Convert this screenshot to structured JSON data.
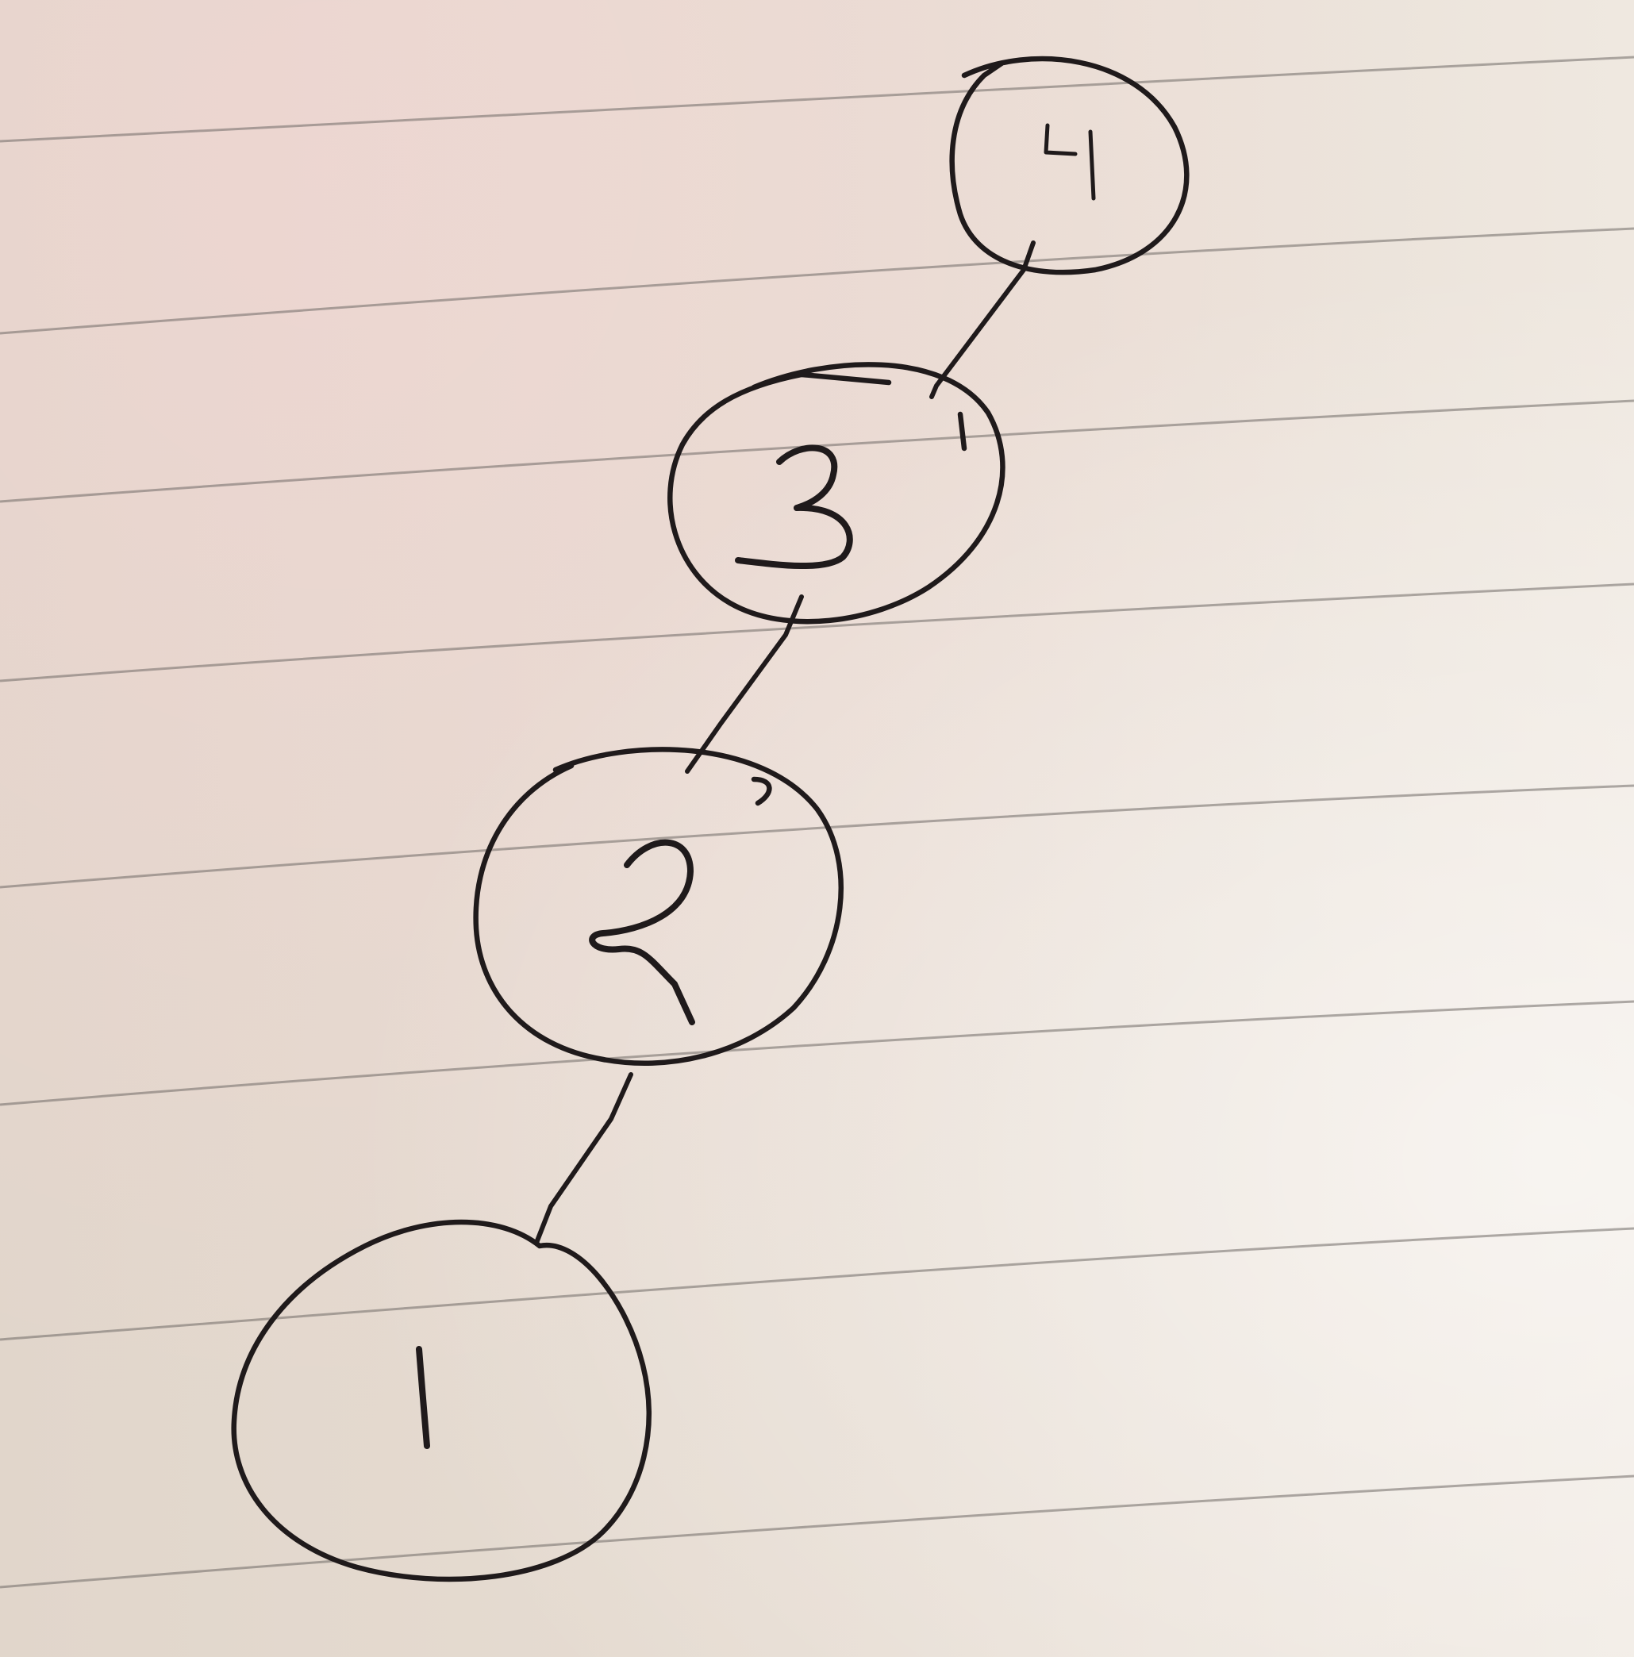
{
  "paper": {
    "background_color": "#e6dcd2",
    "rule_color": "#6f6a66",
    "ink_color": "#1f1a1b"
  },
  "diagram": {
    "type": "tree",
    "nodes": [
      {
        "id": "n4",
        "label": "4"
      },
      {
        "id": "n3",
        "label": "3"
      },
      {
        "id": "n2",
        "label": "2"
      },
      {
        "id": "n1",
        "label": "1"
      }
    ],
    "edges": [
      {
        "from": "n4",
        "to": "n3"
      },
      {
        "from": "n3",
        "to": "n2"
      },
      {
        "from": "n2",
        "to": "n1"
      }
    ]
  }
}
